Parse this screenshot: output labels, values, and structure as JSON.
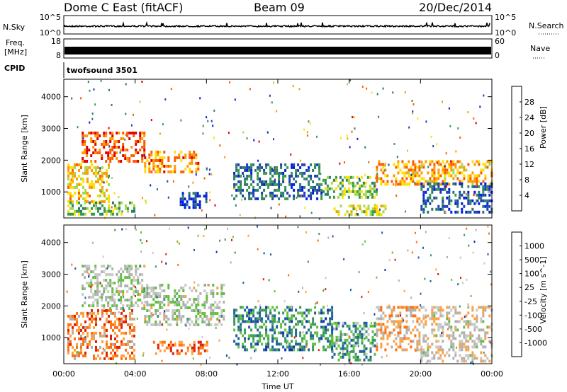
{
  "header": {
    "radar": "Dome C East (fitACF)",
    "beam": "Beam 09",
    "date": "20/Dec/2014"
  },
  "strips": {
    "nsky_label": "N.Sky",
    "nsearch_label": "N.Search",
    "nsky_ticks": [
      "10^5",
      "10^0"
    ],
    "nsearch_ticks": [
      "10^5",
      "10^0"
    ],
    "freq_label_1": "Freq.",
    "freq_label_2": "[MHz]",
    "freq_ticks": [
      "18",
      "8"
    ],
    "nave_label": "Nave",
    "nave_ticks": [
      "60",
      "0"
    ],
    "cpid_label": "CPID",
    "cpid_value": "twofsound 3501"
  },
  "chart_data": [
    {
      "type": "heatmap",
      "name": "power",
      "xlabel": "",
      "ylabel": "Slant Range [km]",
      "x_ticks": [
        "00:00",
        "04:00",
        "08:00",
        "12:00",
        "16:00",
        "20:00",
        "00:00"
      ],
      "xlim_hours": [
        0,
        24
      ],
      "y_ticks": [
        1000,
        2000,
        3000,
        4000
      ],
      "ylim": [
        180,
        4550
      ],
      "colorbar_label": "Power [dB]",
      "colorbar_ticks": [
        "28",
        "24",
        "20",
        "16",
        "12",
        "8",
        "4"
      ],
      "colorbar_colors": [
        "#e00000",
        "#ff5a00",
        "#ff9a00",
        "#ffe000",
        "#a8d84c",
        "#3a9a4a",
        "#2a7a70",
        "#2040b0",
        "#0020e0"
      ],
      "regions": [
        {
          "t": [
            0.2,
            2.5
          ],
          "r": [
            700,
            1900
          ],
          "level": 0.35
        },
        {
          "t": [
            0.2,
            4.0
          ],
          "r": [
            300,
            700
          ],
          "level": 0.55
        },
        {
          "t": [
            1.0,
            4.5
          ],
          "r": [
            1950,
            2900
          ],
          "level": 0.15
        },
        {
          "t": [
            4.5,
            7.5
          ],
          "r": [
            1600,
            2300
          ],
          "level": 0.25
        },
        {
          "t": [
            6.5,
            8.0
          ],
          "r": [
            500,
            1000
          ],
          "level": 0.9
        },
        {
          "t": [
            9.5,
            14.5
          ],
          "r": [
            800,
            1900
          ],
          "level": 0.75
        },
        {
          "t": [
            14.5,
            17.5
          ],
          "r": [
            800,
            1500
          ],
          "level": 0.55
        },
        {
          "t": [
            15.0,
            18.0
          ],
          "r": [
            300,
            600
          ],
          "level": 0.45
        },
        {
          "t": [
            17.5,
            24.0
          ],
          "r": [
            1200,
            2000
          ],
          "level": 0.3
        },
        {
          "t": [
            20.0,
            24.0
          ],
          "r": [
            400,
            1300
          ],
          "level": 0.8
        }
      ]
    },
    {
      "type": "heatmap",
      "name": "velocity",
      "xlabel": "Time UT",
      "ylabel": "Slant Range [km]",
      "x_ticks": [
        "00:00",
        "04:00",
        "08:00",
        "12:00",
        "16:00",
        "20:00",
        "00:00"
      ],
      "xlim_hours": [
        0,
        24
      ],
      "y_ticks": [
        1000,
        2000,
        3000,
        4000
      ],
      "ylim": [
        180,
        4550
      ],
      "colorbar_label": "Velocity [m s^-1]",
      "colorbar_ticks": [
        "1000",
        "500",
        "100",
        "25",
        "-25",
        "-100",
        "-500",
        "-1000"
      ],
      "colorbar_colors": [
        "#1030b0",
        "#2060a0",
        "#3a9a60",
        "#60c040",
        "#c8c8c8",
        "#b0b0b0",
        "#ffa040",
        "#ff7010",
        "#e02000"
      ],
      "regions": [
        {
          "t": [
            0.2,
            4.0
          ],
          "r": [
            300,
            1900
          ],
          "level": 0.8
        },
        {
          "t": [
            1.0,
            4.5
          ],
          "r": [
            1950,
            3300
          ],
          "level": 0.5
        },
        {
          "t": [
            4.5,
            9.0
          ],
          "r": [
            1400,
            2700
          ],
          "level": 0.5
        },
        {
          "t": [
            5.0,
            8.0
          ],
          "r": [
            500,
            900
          ],
          "level": 0.85
        },
        {
          "t": [
            9.5,
            15.0
          ],
          "r": [
            600,
            2000
          ],
          "level": 0.25
        },
        {
          "t": [
            15.0,
            17.5
          ],
          "r": [
            300,
            1500
          ],
          "level": 0.3
        },
        {
          "t": [
            17.5,
            20.0
          ],
          "r": [
            600,
            2000
          ],
          "level": 0.7
        },
        {
          "t": [
            20.0,
            24.0
          ],
          "r": [
            300,
            2000
          ],
          "level": 0.6
        }
      ]
    }
  ]
}
